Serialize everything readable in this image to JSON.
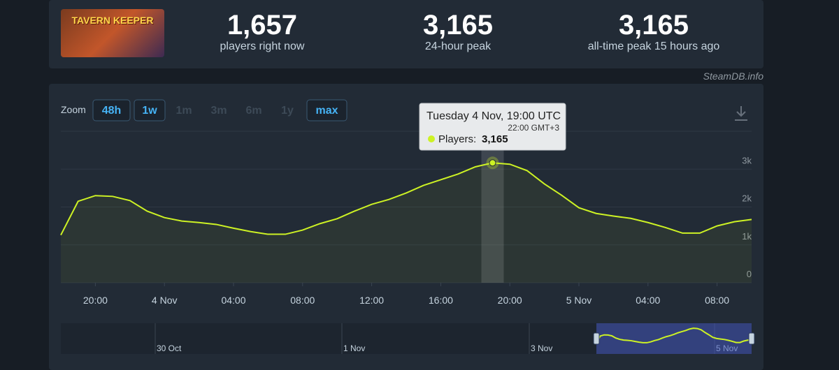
{
  "game": {
    "logo_text": "TAVERN KEEPER"
  },
  "stats": [
    {
      "value": "1,657",
      "label": "players right now"
    },
    {
      "value": "3,165",
      "label": "24-hour peak"
    },
    {
      "value": "3,165",
      "label": "all-time peak 15 hours ago"
    }
  ],
  "watermark": "SteamDB.info",
  "zoom": {
    "label": "Zoom",
    "buttons": [
      "48h",
      "1w",
      "1m",
      "3m",
      "6m",
      "1y",
      "max"
    ]
  },
  "tooltip": {
    "title": "Tuesday 4 Nov, 19:00 UTC",
    "local_time": "22:00 GMT+3",
    "series_label": "Players:",
    "value": "3,165"
  },
  "navigator": {
    "labels": [
      "30 Oct",
      "1 Nov",
      "3 Nov",
      "5 Nov"
    ]
  },
  "chart_data": {
    "type": "line",
    "categories": [
      null,
      null,
      "20:00",
      null,
      null,
      null,
      "4 Nov",
      null,
      null,
      null,
      "04:00",
      null,
      null,
      null,
      "08:00",
      null,
      null,
      null,
      "12:00",
      null,
      null,
      null,
      "16:00",
      null,
      null,
      null,
      "20:00",
      null,
      null,
      null,
      "5 Nov",
      null,
      null,
      null,
      "04:00",
      null,
      null,
      null,
      "08:00",
      null,
      null
    ],
    "series": [
      {
        "name": "Players",
        "color": "#cdf224",
        "values": [
          1260,
          2150,
          2300,
          2280,
          2170,
          1890,
          1720,
          1630,
          1590,
          1540,
          1440,
          1350,
          1280,
          1280,
          1390,
          1560,
          1690,
          1890,
          2070,
          2200,
          2370,
          2570,
          2720,
          2870,
          3060,
          3165,
          3130,
          2960,
          2610,
          2310,
          1980,
          1830,
          1760,
          1700,
          1590,
          1460,
          1310,
          1310,
          1500,
          1610,
          1670
        ]
      }
    ],
    "ylim": [
      0,
      4000
    ],
    "yticks": [
      0,
      {
        "value": 1000,
        "label": "1k"
      },
      {
        "value": 2000,
        "label": "2k"
      },
      {
        "value": 3000,
        "label": "3k"
      }
    ],
    "grid": true
  }
}
